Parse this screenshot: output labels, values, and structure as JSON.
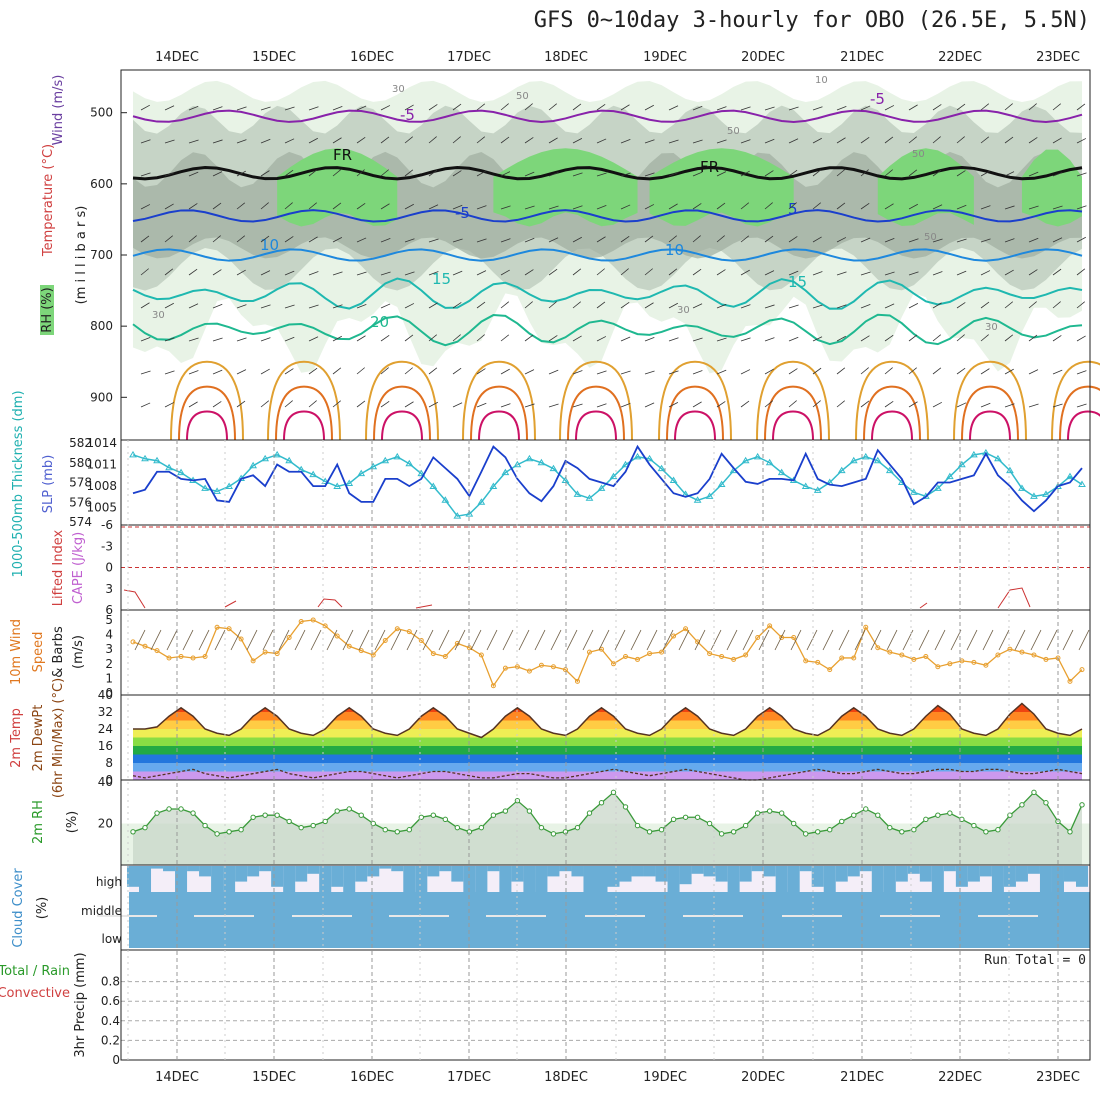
{
  "title": "GFS 0~10day 3-hourly for OBO (26.5E, 5.5N)",
  "dates": [
    "14DEC",
    "15DEC",
    "16DEC",
    "17DEC",
    "18DEC",
    "19DEC",
    "20DEC",
    "21DEC",
    "22DEC",
    "23DEC"
  ],
  "run_total": "Run Total = 0",
  "colors": {
    "rh_light": "#e8f3e6",
    "rh_mid": "#c6d4c6",
    "rh_dark": "#9fae9f",
    "rh_green": "#7dd67a",
    "rh_bright": "#22dd22",
    "slp": "#1a3fcc",
    "thickness": "#33bbcc",
    "wind_speed": "#e8a030",
    "rh_line": "#3a9a3a",
    "cloud": "#6aaed6",
    "cape": "#cc3333"
  },
  "chart_data": [
    {
      "type": "contour",
      "panel": "upper-air",
      "y_ticks": [
        "500",
        "600",
        "700",
        "800",
        "900"
      ],
      "ylim": [
        440,
        960
      ],
      "ylabels": {
        "wind": "Wind (m/s)",
        "temperature": "Temperature (°C)",
        "pressure": "(m i l l i b a r s)",
        "rh": "RH (%)"
      },
      "isotherm_labels": [
        "-5",
        "-5",
        "FR",
        "FR",
        "-5",
        "5",
        "10",
        "10",
        "15",
        "15",
        "20"
      ],
      "rh_labels": [
        "30",
        "50",
        "50",
        "50",
        "30",
        "30",
        "30",
        "10",
        "50"
      ]
    },
    {
      "type": "line",
      "panel": "slp-thickness",
      "left_ticks": [
        "582",
        "580",
        "578",
        "576",
        "574"
      ],
      "right_ticks": [
        "1014",
        "1011",
        "1008",
        "1005"
      ],
      "ylabels": {
        "thickness": "1000-500mb Thickness (dm)",
        "slp": "SLP (mb)"
      },
      "slp_lim": [
        1003,
        1014
      ],
      "slp": [
        1007,
        1007.5,
        1010,
        1010,
        1009,
        1008.8,
        1009,
        1006,
        1005.8,
        1009,
        1009.5,
        1008,
        1011,
        1010,
        1010,
        1008,
        1008,
        1011,
        1007,
        1005.8,
        1005.8,
        1009,
        1009,
        1008,
        1009,
        1012,
        1010.5,
        1009,
        1006.6,
        1010,
        1013.5,
        1012,
        1009,
        1007,
        1005.9,
        1008,
        1011.5,
        1010.5,
        1009,
        1008.5,
        1008,
        1010,
        1013.5,
        1011,
        1009,
        1007,
        1006.5,
        1007,
        1009,
        1012.5,
        1010.5,
        1008.6,
        1008.3,
        1009,
        1009,
        1008.8,
        1012.5,
        1009,
        1008.2,
        1008,
        1008.5,
        1009,
        1013,
        1011,
        1009,
        1005.5,
        1006.5,
        1008.5,
        1008.5,
        1009,
        1009.5,
        1012.5,
        1009.5,
        1008,
        1006,
        1004.5,
        1006,
        1008,
        1008.5,
        1010.5
      ],
      "thickness": [
        580.8,
        580.4,
        580.2,
        579.5,
        579.0,
        578.2,
        577.4,
        577.1,
        577.6,
        578.4,
        579.7,
        580.4,
        580.8,
        580.2,
        579.3,
        578.8,
        578.1,
        577.6,
        577.9,
        578.9,
        579.6,
        580.2,
        580.6,
        579.9,
        578.9,
        577.6,
        576.2,
        574.6,
        574.8,
        576.0,
        577.6,
        579.0,
        579.8,
        580.4,
        580.0,
        579.4,
        578.2,
        576.8,
        576.4,
        577.4,
        578.6,
        579.8,
        580.6,
        580.4,
        579.4,
        578.2,
        576.8,
        576.2,
        576.6,
        577.8,
        579.2,
        580.2,
        580.6,
        580.0,
        579.0,
        578.2,
        577.6,
        577.2,
        578.0,
        579.2,
        580.2,
        580.6,
        580.2,
        579.2,
        578.0,
        577.0,
        576.6,
        577.4,
        578.6,
        579.8,
        580.8,
        581.0,
        580.4,
        579.2,
        577.4,
        576.6,
        576.8,
        577.6,
        578.6,
        577.8
      ]
    },
    {
      "type": "line",
      "panel": "lifted-index-cape",
      "ticks": [
        "-6",
        "-3",
        "0",
        "3",
        "6"
      ],
      "ylabels": {
        "li": "Lifted Index",
        "cape": "CAPE (J/kg)"
      },
      "ylim": [
        -6,
        6
      ]
    },
    {
      "type": "line",
      "panel": "wind-10m",
      "ticks": [
        "5",
        "4",
        "3",
        "2",
        "1",
        "0"
      ],
      "ylabels": {
        "a": "10m Wind",
        "b": "Speed",
        "c": "& Barbs",
        "d": "(m/s)"
      },
      "ylim": [
        0,
        5
      ],
      "speed": [
        3.5,
        3.2,
        2.9,
        2.4,
        2.5,
        2.4,
        2.5,
        4.5,
        4.4,
        3.7,
        2.2,
        2.8,
        2.7,
        3.8,
        4.9,
        5.0,
        4.6,
        3.9,
        3.2,
        2.9,
        2.6,
        3.6,
        4.4,
        4.2,
        3.6,
        2.7,
        2.5,
        3.4,
        3.1,
        2.6,
        0.5,
        1.7,
        1.8,
        1.5,
        1.9,
        1.8,
        1.6,
        0.8,
        2.8,
        3.0,
        2.0,
        2.5,
        2.3,
        2.7,
        2.8,
        3.9,
        4.4,
        3.5,
        2.7,
        2.5,
        2.3,
        2.6,
        3.8,
        4.6,
        3.8,
        3.8,
        2.2,
        2.1,
        1.6,
        2.4,
        2.4,
        4.5,
        3.1,
        2.8,
        2.6,
        2.3,
        2.5,
        1.8,
        2.0,
        2.2,
        2.1,
        1.9,
        2.6,
        3.0,
        2.8,
        2.6,
        2.3,
        2.4,
        0.8,
        1.6
      ]
    },
    {
      "type": "area",
      "panel": "temperature-2m",
      "ticks": [
        "40",
        "32",
        "24",
        "16",
        "8",
        "0"
      ],
      "ylabels": {
        "a": "2m Temp",
        "b": "2m DewPt",
        "c": "(6hr Min/Max) (°C)"
      },
      "ylim": [
        0,
        40
      ],
      "temp": [
        24,
        24,
        25,
        30,
        34,
        30,
        24,
        22,
        21,
        24,
        30,
        34,
        30,
        24,
        22,
        21,
        24,
        30,
        34,
        30,
        24,
        22,
        21,
        24,
        30,
        34,
        30,
        24,
        22,
        20,
        24,
        30,
        34,
        30,
        24,
        22,
        21,
        24,
        30,
        34,
        30,
        24,
        22,
        21,
        24,
        30,
        34,
        30,
        24,
        22,
        21,
        24,
        30,
        34,
        30,
        24,
        22,
        21,
        24,
        30,
        34,
        30,
        24,
        22,
        21,
        24,
        30,
        35,
        31,
        24,
        22,
        21,
        24,
        31,
        36,
        31,
        24,
        22,
        21,
        24
      ],
      "dewpoint": [
        2,
        1,
        2,
        3,
        4,
        5,
        3,
        2,
        1,
        2,
        3,
        4,
        5,
        3,
        2,
        1,
        2,
        3,
        4,
        4,
        3,
        2,
        1,
        2,
        3,
        4,
        4,
        3,
        2,
        1,
        1,
        2,
        3,
        3,
        2,
        1,
        1,
        2,
        3,
        4,
        5,
        4,
        3,
        2,
        3,
        4,
        5,
        4,
        3,
        2,
        1,
        0,
        0,
        1,
        2,
        3,
        4,
        5,
        4,
        3,
        3,
        4,
        5,
        4,
        3,
        3,
        4,
        5,
        5,
        4,
        4,
        5,
        5,
        4,
        3,
        3,
        4,
        5,
        4,
        3
      ]
    },
    {
      "type": "area",
      "panel": "rh-2m",
      "ticks": [
        "40",
        "20"
      ],
      "ylabels": {
        "a": "2m RH",
        "b": "(%)"
      },
      "ylim": [
        0,
        40
      ],
      "rh": [
        16,
        18,
        25,
        27,
        27,
        25,
        19,
        15,
        16,
        17,
        23,
        24,
        24,
        21,
        18,
        19,
        21,
        26,
        27,
        24,
        20,
        17,
        16,
        17,
        23,
        24,
        22,
        18,
        16,
        18,
        24,
        26,
        31,
        26,
        18,
        15,
        16,
        18,
        25,
        30,
        35,
        28,
        19,
        16,
        17,
        22,
        23,
        23,
        20,
        15,
        16,
        19,
        25,
        26,
        25,
        20,
        15,
        16,
        17,
        21,
        24,
        27,
        24,
        18,
        16,
        17,
        22,
        24,
        25,
        22,
        19,
        16,
        17,
        24,
        29,
        35,
        30,
        21,
        16,
        29
      ]
    },
    {
      "type": "bar",
      "panel": "cloud-cover",
      "ticks": [
        "high",
        "middle",
        "low"
      ],
      "ylabels": {
        "a": "Cloud Cover",
        "b": "(%)"
      },
      "high": [
        80,
        100,
        10,
        20,
        100,
        20,
        40,
        100,
        100,
        60,
        40,
        20,
        80,
        100,
        60,
        30,
        100,
        80,
        100,
        60,
        40,
        10,
        20,
        100,
        100,
        40,
        20,
        60,
        100,
        100,
        20,
        100,
        60,
        100,
        100,
        40,
        20,
        40,
        100,
        100,
        80,
        60,
        40,
        40,
        60,
        100,
        70,
        30,
        40,
        60,
        100,
        60,
        20,
        40,
        100,
        100,
        20,
        80,
        100,
        60,
        40,
        20,
        100,
        100,
        60,
        30,
        60,
        100,
        20,
        80,
        60,
        40,
        100,
        80,
        60,
        30,
        100,
        100,
        60,
        80
      ]
    },
    {
      "type": "bar",
      "panel": "precipitation",
      "ticks": [
        "0.8",
        "0.6",
        "0.4",
        "0.2",
        "0"
      ],
      "ylabels": {
        "a": "3hr Precip (mm)",
        "b": "Total / Rain",
        "c": "Convective"
      },
      "ylim": [
        0,
        1
      ]
    }
  ]
}
